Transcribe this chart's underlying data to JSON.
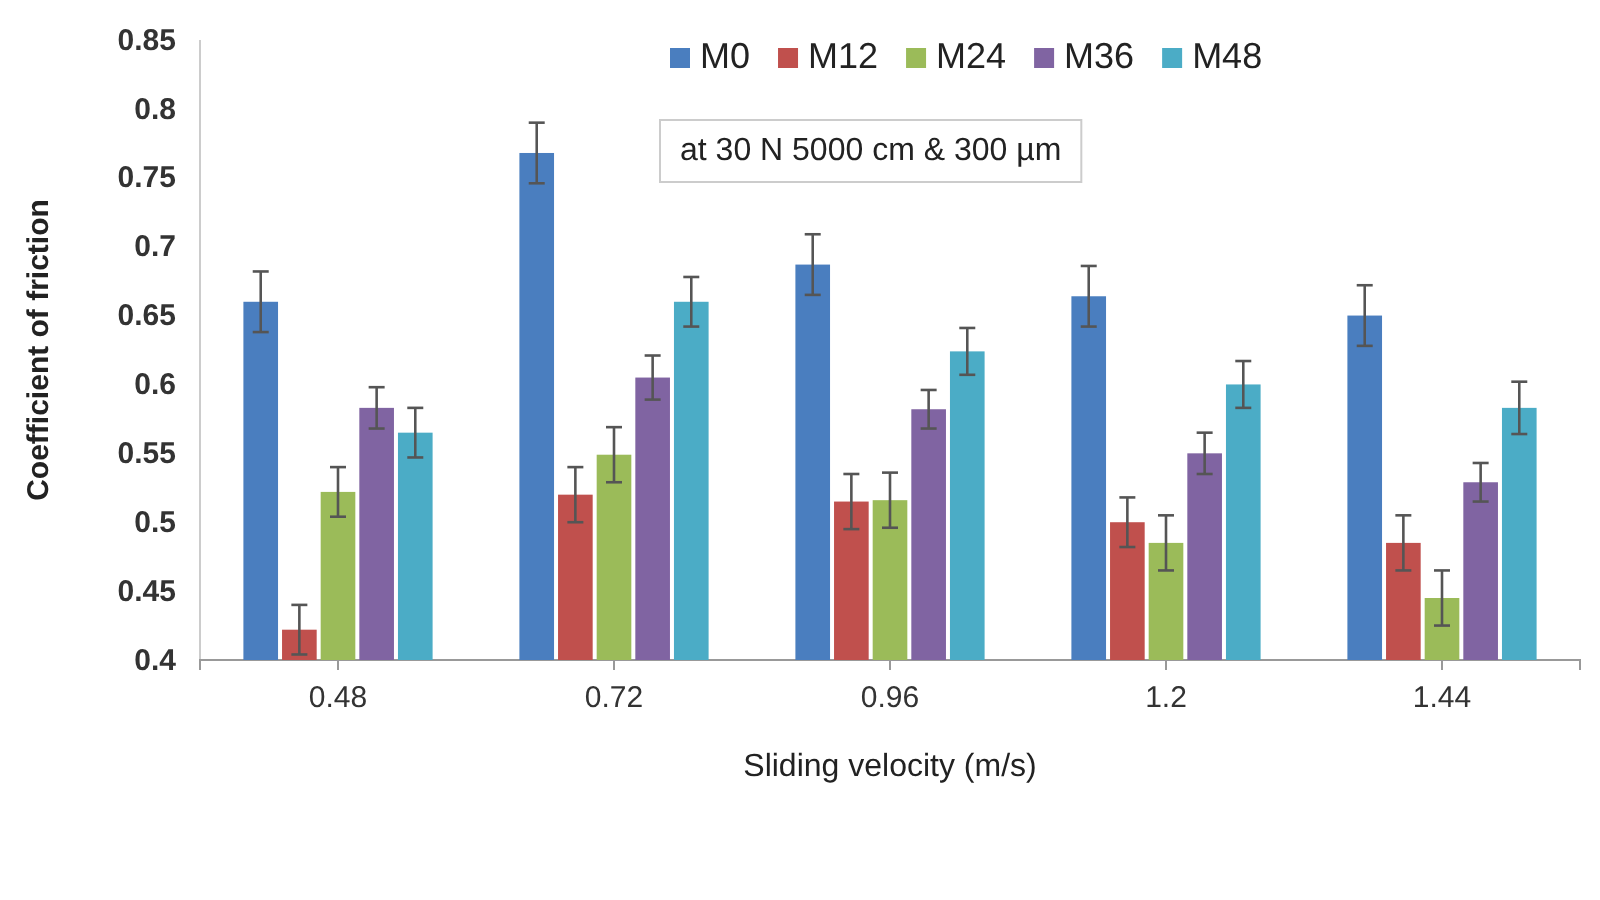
{
  "chart_data": {
    "type": "bar",
    "xlabel": "Sliding velocity (m/s)",
    "ylabel": "Coefficient of friction",
    "categories": [
      "0.48",
      "0.72",
      "0.96",
      "1.2",
      "1.44"
    ],
    "series": [
      {
        "name": "M0",
        "color": "#4a7ebf",
        "values": [
          0.66,
          0.768,
          0.687,
          0.664,
          0.65
        ],
        "errors": [
          0.022,
          0.022,
          0.022,
          0.022,
          0.022
        ]
      },
      {
        "name": "M12",
        "color": "#c0504d",
        "values": [
          0.422,
          0.52,
          0.515,
          0.5,
          0.485
        ],
        "errors": [
          0.018,
          0.02,
          0.02,
          0.018,
          0.02
        ]
      },
      {
        "name": "M24",
        "color": "#9bbb59",
        "values": [
          0.522,
          0.549,
          0.516,
          0.485,
          0.445
        ],
        "errors": [
          0.018,
          0.02,
          0.02,
          0.02,
          0.02
        ]
      },
      {
        "name": "M36",
        "color": "#8064a2",
        "values": [
          0.583,
          0.605,
          0.582,
          0.55,
          0.529
        ],
        "errors": [
          0.015,
          0.016,
          0.014,
          0.015,
          0.014
        ]
      },
      {
        "name": "M48",
        "color": "#4bacc6",
        "values": [
          0.565,
          0.66,
          0.624,
          0.6,
          0.583
        ],
        "errors": [
          0.018,
          0.018,
          0.017,
          0.017,
          0.019
        ]
      }
    ],
    "ylim": [
      0.4,
      0.85
    ],
    "yticks": [
      0.4,
      0.45,
      0.5,
      0.55,
      0.6,
      0.65,
      0.7,
      0.75,
      0.8,
      0.85
    ],
    "legend": "top right",
    "annotations": [
      "at 30 N 5000 cm & 300 µm"
    ]
  }
}
